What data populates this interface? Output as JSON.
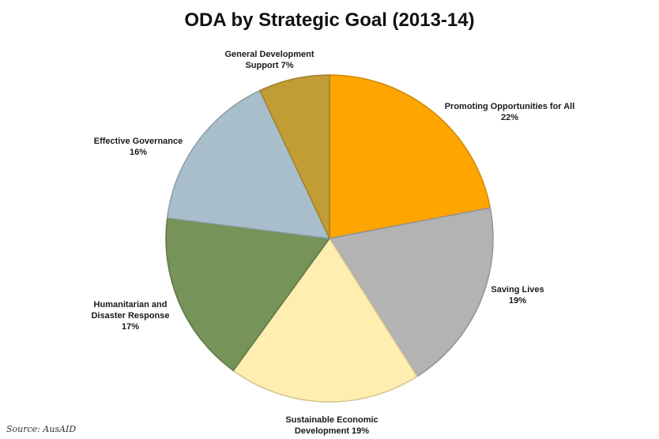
{
  "chart_data": {
    "type": "pie",
    "title": "ODA by Strategic Goal (2013-14)",
    "source": "Source: AusAID",
    "slices": [
      {
        "label_lines": [
          "Promoting Opportunities for All",
          "22%"
        ],
        "value": 22,
        "color": "#FFA500"
      },
      {
        "label_lines": [
          "Saving Lives",
          "19%"
        ],
        "value": 19,
        "color": "#B3B3B3"
      },
      {
        "label_lines": [
          "Sustainable Economic",
          "Development 19%"
        ],
        "value": 19,
        "color": "#FFEEB0"
      },
      {
        "label_lines": [
          "Humanitarian and",
          "Disaster Response",
          "17%"
        ],
        "value": 17,
        "color": "#769359"
      },
      {
        "label_lines": [
          "Effective Governance",
          "16%"
        ],
        "value": 16,
        "color": "#A8BFCB"
      },
      {
        "label_lines": [
          "General Development",
          "Support 7%"
        ],
        "value": 7,
        "color": "#C29C35"
      }
    ]
  }
}
